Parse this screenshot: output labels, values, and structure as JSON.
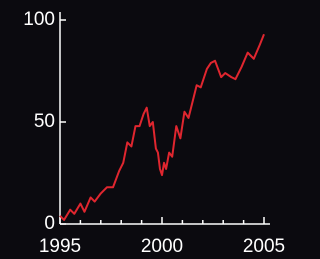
{
  "chart_data": {
    "type": "line",
    "x": [
      1995.0,
      1995.2,
      1995.5,
      1995.7,
      1996.0,
      1996.2,
      1996.5,
      1996.7,
      1997.0,
      1997.3,
      1997.6,
      1997.9,
      1998.1,
      1998.3,
      1998.5,
      1998.7,
      1998.9,
      1999.1,
      1999.25,
      1999.4,
      1999.55,
      1999.7,
      1999.8,
      1999.9,
      2000.0,
      2000.1,
      2000.2,
      2000.35,
      2000.5,
      2000.7,
      2000.9,
      2001.1,
      2001.3,
      2001.5,
      2001.7,
      2001.9,
      2002.2,
      2002.4,
      2002.6,
      2002.9,
      2003.1,
      2003.4,
      2003.6,
      2003.9,
      2004.2,
      2004.5,
      2004.8,
      2005.0
    ],
    "series": [
      {
        "color": "#e0262f",
        "values": [
          4,
          2,
          7,
          5,
          10,
          6,
          13,
          11,
          15,
          18,
          18,
          26,
          30,
          40,
          38,
          48,
          48,
          54,
          57,
          48,
          50,
          37,
          35,
          27,
          24,
          30,
          27,
          35,
          33,
          48,
          42,
          55,
          52,
          60,
          68,
          67,
          76,
          79,
          80,
          72,
          74,
          72,
          71,
          77,
          84,
          81,
          88,
          93
        ]
      }
    ],
    "xlim": [
      1995,
      2005
    ],
    "xticks": [
      1995,
      2000,
      2005
    ],
    "xminorticks": [
      1996,
      1997,
      1998,
      1999,
      2001,
      2002,
      2003,
      2004
    ],
    "ylim": [
      0,
      100
    ],
    "yticks": [
      0,
      50,
      100
    ]
  }
}
